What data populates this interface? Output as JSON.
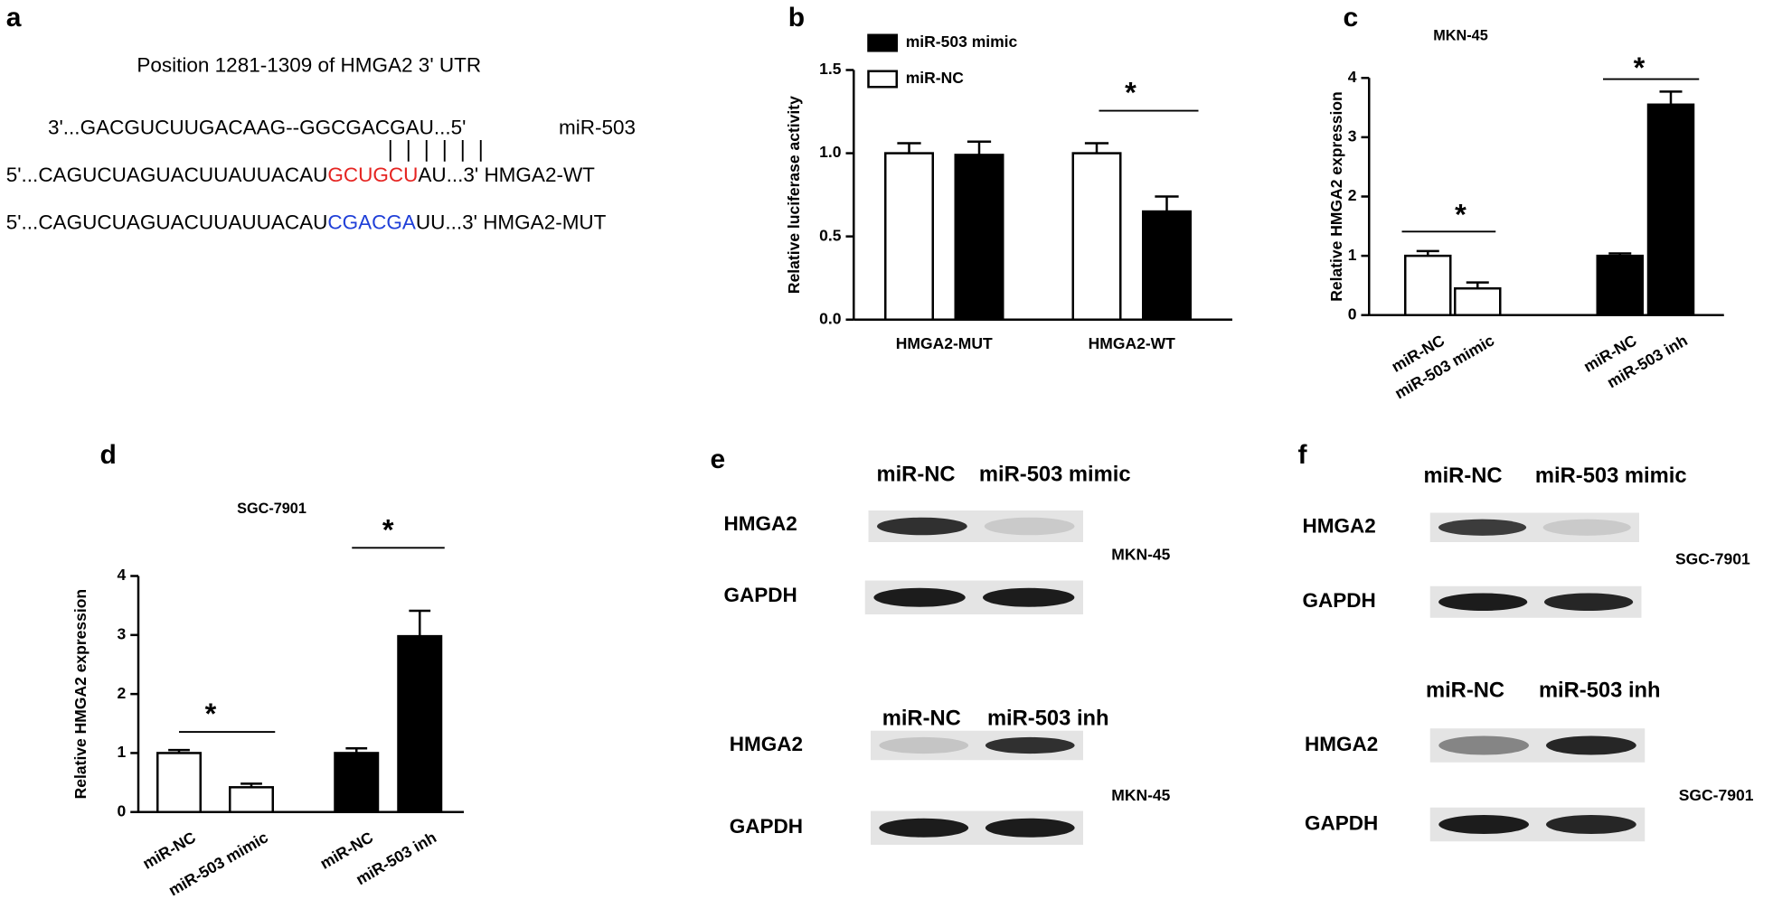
{
  "chart_data": [
    {
      "type": "bar",
      "label": "b",
      "ylabel": "Relative luciferase activity",
      "categories": [
        "HMGA2-MUT",
        "HMGA2-WT"
      ],
      "series": [
        {
          "name": "miR-NC",
          "color": "#ffffff",
          "values": [
            1.0,
            1.0
          ],
          "errors": [
            0.06,
            0.06
          ]
        },
        {
          "name": "miR-503 mimic",
          "color": "#000000",
          "values": [
            0.99,
            0.65
          ],
          "errors": [
            0.08,
            0.09
          ]
        }
      ],
      "ylim": [
        0,
        1.5
      ],
      "yticks": [
        {
          "value": 0,
          "label": "0.0"
        },
        {
          "value": 0.5,
          "label": "0.5"
        },
        {
          "value": 1,
          "label": "1.0"
        },
        {
          "value": 1.5,
          "label": "1.5"
        }
      ],
      "annotations": [
        "*"
      ]
    },
    {
      "type": "bar",
      "label": "c",
      "title": "MKN-45",
      "ylabel": "Relative HMGA2 expression",
      "categories": [
        "miR-NC",
        "miR-503 mimic",
        "miR-NC",
        "miR-503 inh"
      ],
      "values": [
        1.0,
        0.45,
        1.0,
        3.55
      ],
      "errors": [
        0.08,
        0.1,
        0.04,
        0.22
      ],
      "colors": [
        "#ffffff",
        "#ffffff",
        "#000000",
        "#000000"
      ],
      "ylim": [
        0,
        4
      ],
      "yticks": [
        0,
        1,
        2,
        3,
        4
      ],
      "annotations": [
        "*",
        "*"
      ]
    },
    {
      "type": "bar",
      "label": "d",
      "title": "SGC-7901",
      "ylabel": "Relative HMGA2 expression",
      "categories": [
        "miR-NC",
        "miR-503 mimic",
        "miR-NC",
        "miR-503 inh"
      ],
      "values": [
        1.0,
        0.42,
        1.0,
        2.98
      ],
      "errors": [
        0.05,
        0.06,
        0.08,
        0.43
      ],
      "colors": [
        "#ffffff",
        "#ffffff",
        "#000000",
        "#000000"
      ],
      "ylim": [
        0,
        4
      ],
      "yticks": [
        0,
        1,
        2,
        3,
        4
      ],
      "annotations": [
        "*",
        "*"
      ]
    }
  ],
  "panel_a": {
    "label": "a",
    "title": "Position 1281-1309 of HMGA2 3' UTR",
    "mirna": {
      "sequence": "3'...GACGUCUUGACAAG--GGCGACGAU...5'",
      "name": "miR-503"
    },
    "wt": {
      "prefix": "5'...CAGUCUAGUACUUAUUACAU",
      "site": "GCUGCU",
      "suffix": "AU...3'",
      "name": "HMGA2-WT"
    },
    "mut": {
      "prefix": "5'...CAGUCUAGUACUUAUUACAU",
      "site": "CGACGA",
      "suffix": "UU...3'",
      "name": "HMGA2-MUT"
    }
  },
  "panel_e": {
    "label": "e",
    "blots": [
      {
        "columns": [
          "miR-NC",
          "miR-503 mimic"
        ],
        "rows": [
          "HMGA2",
          "GAPDH"
        ],
        "cell_line": "MKN-45"
      },
      {
        "columns": [
          "miR-NC",
          "miR-503 inh"
        ],
        "rows": [
          "HMGA2",
          "GAPDH"
        ],
        "cell_line": "MKN-45"
      }
    ]
  },
  "panel_f": {
    "label": "f",
    "blots": [
      {
        "columns": [
          "miR-NC",
          "miR-503 mimic"
        ],
        "rows": [
          "HMGA2",
          "GAPDH"
        ],
        "cell_line": "SGC-7901"
      },
      {
        "columns": [
          "miR-NC",
          "miR-503 inh"
        ],
        "rows": [
          "HMGA2",
          "GAPDH"
        ],
        "cell_line": "SGC-7901"
      }
    ]
  }
}
